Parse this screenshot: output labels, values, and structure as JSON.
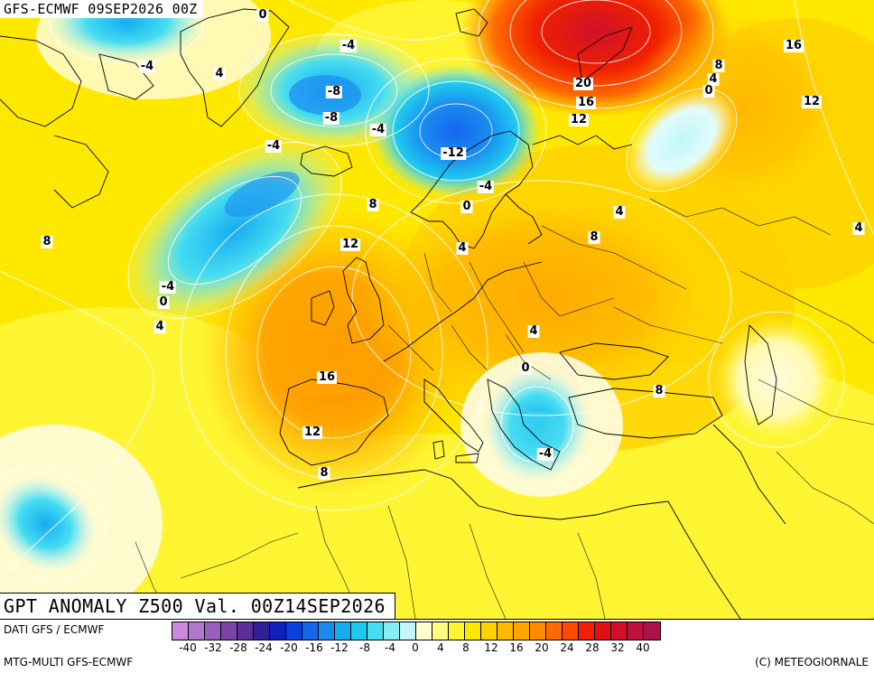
{
  "map": {
    "header_title": "GFS-ECMWF 09SEP2026 00Z",
    "footer_title": "GPT ANOMALY Z500 Val. 00Z14SEP2026",
    "colors": {
      "land_border": "#000000",
      "contour_line": "#ffffff",
      "label_bg": "#ffffff"
    },
    "contour_labels": [
      {
        "text": "0"
      },
      {
        "text": "-4"
      },
      {
        "text": "4"
      },
      {
        "text": "-4"
      },
      {
        "text": "-8"
      },
      {
        "text": "-8"
      },
      {
        "text": "-4"
      },
      {
        "text": "-4"
      },
      {
        "text": "-12"
      },
      {
        "text": "-4"
      },
      {
        "text": "0"
      },
      {
        "text": "8"
      },
      {
        "text": "12"
      },
      {
        "text": "4"
      },
      {
        "text": "8"
      },
      {
        "text": "-4"
      },
      {
        "text": "0"
      },
      {
        "text": "4"
      },
      {
        "text": "16"
      },
      {
        "text": "12"
      },
      {
        "text": "8"
      },
      {
        "text": "4"
      },
      {
        "text": "0"
      },
      {
        "text": "-4"
      },
      {
        "text": "8"
      },
      {
        "text": "4"
      },
      {
        "text": "8"
      },
      {
        "text": "20"
      },
      {
        "text": "16"
      },
      {
        "text": "12"
      },
      {
        "text": "8"
      },
      {
        "text": "4"
      },
      {
        "text": "0"
      },
      {
        "text": "16"
      },
      {
        "text": "12"
      },
      {
        "text": "4"
      }
    ]
  },
  "legend": {
    "data_source": "DATI GFS / ECMWF",
    "model": "MTG-MULTI GFS-ECMWF",
    "copyright": "(C) METEOGIORNALE",
    "colors": [
      "#cc88dd",
      "#b077cc",
      "#9a5fbe",
      "#7d44a8",
      "#5a2f99",
      "#2f1f99",
      "#1020c0",
      "#0a3fe0",
      "#1466ee",
      "#1a8cf0",
      "#16acf0",
      "#1ec8ef",
      "#46dcf2",
      "#86ecf5",
      "#c2f6fa",
      "#ffffd0",
      "#fffc80",
      "#fff533",
      "#ffe800",
      "#ffd200",
      "#ffba00",
      "#ffa500",
      "#ff8c00",
      "#ff6b00",
      "#ff4a00",
      "#f02000",
      "#e01010",
      "#d0102a",
      "#c01040",
      "#b0104c"
    ],
    "tick_labels": [
      "-40",
      "-32",
      "-28",
      "-24",
      "-20",
      "-16",
      "-12",
      "-8",
      "-4",
      "0",
      "4",
      "8",
      "12",
      "16",
      "20",
      "24",
      "28",
      "32",
      "40"
    ]
  }
}
